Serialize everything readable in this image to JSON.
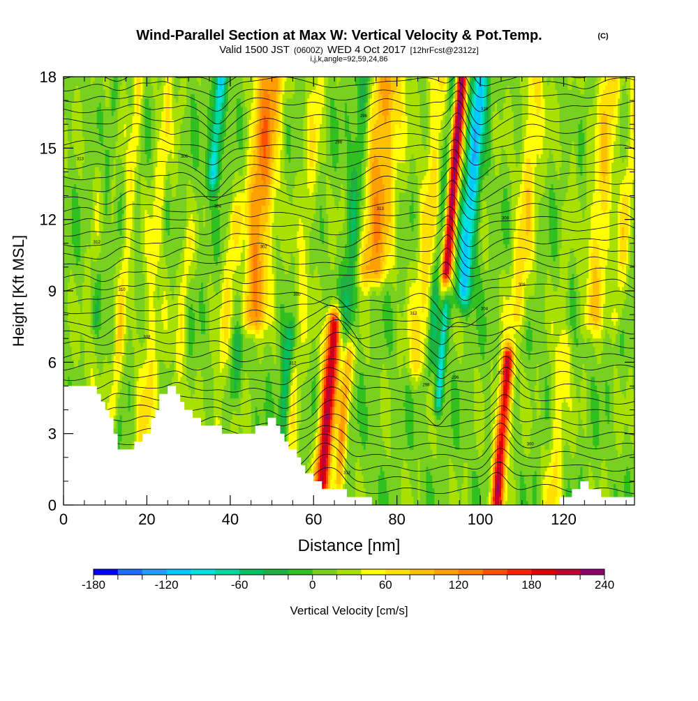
{
  "header": {
    "title": "Wind-Parallel Section at Max W: Vertical Velocity & Pot.Temp.",
    "copyright": "(C)",
    "valid_prefix": "Valid 1500 JST",
    "valid_utc": "(0600Z)",
    "valid_date": "WED 4 Oct 2017",
    "forecast": "[12hrFcst@2312z]",
    "params": "i,j,k,angle=92,59,24,86"
  },
  "chart_data": {
    "type": "heatmap",
    "xlabel": "Distance [nm]",
    "ylabel": "Height [Kft MSL]",
    "xlim": [
      0,
      137
    ],
    "ylim": [
      0,
      18
    ],
    "x_ticks": [
      "0",
      "20",
      "40",
      "60",
      "80",
      "100",
      "120"
    ],
    "y_ticks": [
      "0",
      "3",
      "6",
      "9",
      "12",
      "15",
      "18"
    ],
    "colorbar": {
      "label": "Vertical Velocity [cm/s]",
      "tick_labels": [
        "-180",
        "-120",
        "-60",
        "0",
        "60",
        "120",
        "180",
        "240"
      ],
      "min": -180,
      "max": 240,
      "step": 20,
      "colors": [
        "#0000ff",
        "#1e6bff",
        "#1ea0ff",
        "#00c8ff",
        "#00e0e0",
        "#00d8a0",
        "#00c060",
        "#1eb040",
        "#30c020",
        "#78d020",
        "#a8e000",
        "#ffff00",
        "#ffe000",
        "#ffc000",
        "#ffa000",
        "#ff8000",
        "#ff5000",
        "#ff2000",
        "#e00000",
        "#c00030",
        "#900070"
      ]
    },
    "updrafts": [
      {
        "x": 4,
        "y0": 0,
        "y1": 18,
        "w": 2.5,
        "v": 20
      },
      {
        "x": 12,
        "y0": 4,
        "y1": 18,
        "w": 1.2,
        "v": 50
      },
      {
        "x": 19,
        "y0": 2.5,
        "y1": 18,
        "w": 2.5,
        "v": 45
      },
      {
        "x": 27,
        "y0": 4.5,
        "y1": 11,
        "w": 1.2,
        "v": 40
      },
      {
        "x": 37,
        "y0": 3.5,
        "y1": 12,
        "w": 1.5,
        "v": 40
      },
      {
        "x": 45,
        "y0": 8,
        "y1": 18,
        "w": 3.5,
        "v": 110
      },
      {
        "x": 53,
        "y0": 0,
        "y1": 18,
        "w": 2.0,
        "v": 35
      },
      {
        "x": 62,
        "y0": 1,
        "y1": 7.5,
        "w": 1.8,
        "v": 200
      },
      {
        "x": 66,
        "y0": 1,
        "y1": 6,
        "w": 1.2,
        "v": 90
      },
      {
        "x": 74,
        "y0": 10,
        "y1": 18,
        "w": 4.0,
        "v": 100
      },
      {
        "x": 85,
        "y0": 6,
        "y1": 18,
        "w": 2.5,
        "v": 55
      },
      {
        "x": 92,
        "y0": 10,
        "y1": 18,
        "w": 1.3,
        "v": 215
      },
      {
        "x": 104,
        "y0": 0.3,
        "y1": 6,
        "w": 1.5,
        "v": 190
      },
      {
        "x": 109,
        "y0": 8,
        "y1": 18,
        "w": 2.5,
        "v": 55
      },
      {
        "x": 117,
        "y0": 0,
        "y1": 18,
        "w": 2.0,
        "v": 45
      },
      {
        "x": 127,
        "y0": 8,
        "y1": 18,
        "w": 2.5,
        "v": 65
      },
      {
        "x": 133,
        "y0": 8,
        "y1": 18,
        "w": 1.5,
        "v": 45
      }
    ],
    "downdrafts": [
      {
        "x": 8,
        "y0": 8,
        "y1": 18,
        "w": 1.2,
        "v": -35
      },
      {
        "x": 23,
        "y0": 9,
        "y1": 18,
        "w": 1.0,
        "v": -30
      },
      {
        "x": 36,
        "y0": 14,
        "y1": 18,
        "w": 1.5,
        "v": -110
      },
      {
        "x": 41,
        "y0": 5,
        "y1": 11,
        "w": 1.5,
        "v": -40
      },
      {
        "x": 52,
        "y0": 2,
        "y1": 7,
        "w": 1.3,
        "v": -75
      },
      {
        "x": 68,
        "y0": 8,
        "y1": 18,
        "w": 2.0,
        "v": -60
      },
      {
        "x": 88,
        "y0": 6,
        "y1": 18,
        "w": 1.2,
        "v": -50
      },
      {
        "x": 90,
        "y0": 4.5,
        "y1": 8,
        "w": 1.0,
        "v": -100
      },
      {
        "x": 96,
        "y0": 9,
        "y1": 18,
        "w": 2.0,
        "v": -120
      },
      {
        "x": 121,
        "y0": 8,
        "y1": 18,
        "w": 1.5,
        "v": -45
      }
    ],
    "terrain": [
      [
        0,
        4.9
      ],
      [
        7,
        4.9
      ],
      [
        9,
        4.2
      ],
      [
        11,
        3.6
      ],
      [
        13,
        2.4
      ],
      [
        16,
        2.4
      ],
      [
        20,
        3.0
      ],
      [
        23,
        4.5
      ],
      [
        26,
        5.1
      ],
      [
        28,
        4.4
      ],
      [
        31,
        3.6
      ],
      [
        35,
        3.3
      ],
      [
        40,
        3.0
      ],
      [
        45,
        3.1
      ],
      [
        50,
        3.6
      ],
      [
        53,
        2.7
      ],
      [
        56,
        2.0
      ],
      [
        59,
        1.2
      ],
      [
        62,
        0.7
      ],
      [
        67,
        0.5
      ],
      [
        72,
        0.2
      ],
      [
        80,
        0
      ],
      [
        100,
        0
      ],
      [
        110,
        0
      ],
      [
        120,
        0.2
      ],
      [
        124,
        1.0
      ],
      [
        127,
        0.6
      ],
      [
        130,
        0.4
      ],
      [
        137,
        0.4
      ]
    ],
    "contour_labels": [
      "313",
      "312",
      "310",
      "308",
      "306",
      "304",
      "302",
      "300",
      "298",
      "296"
    ]
  }
}
